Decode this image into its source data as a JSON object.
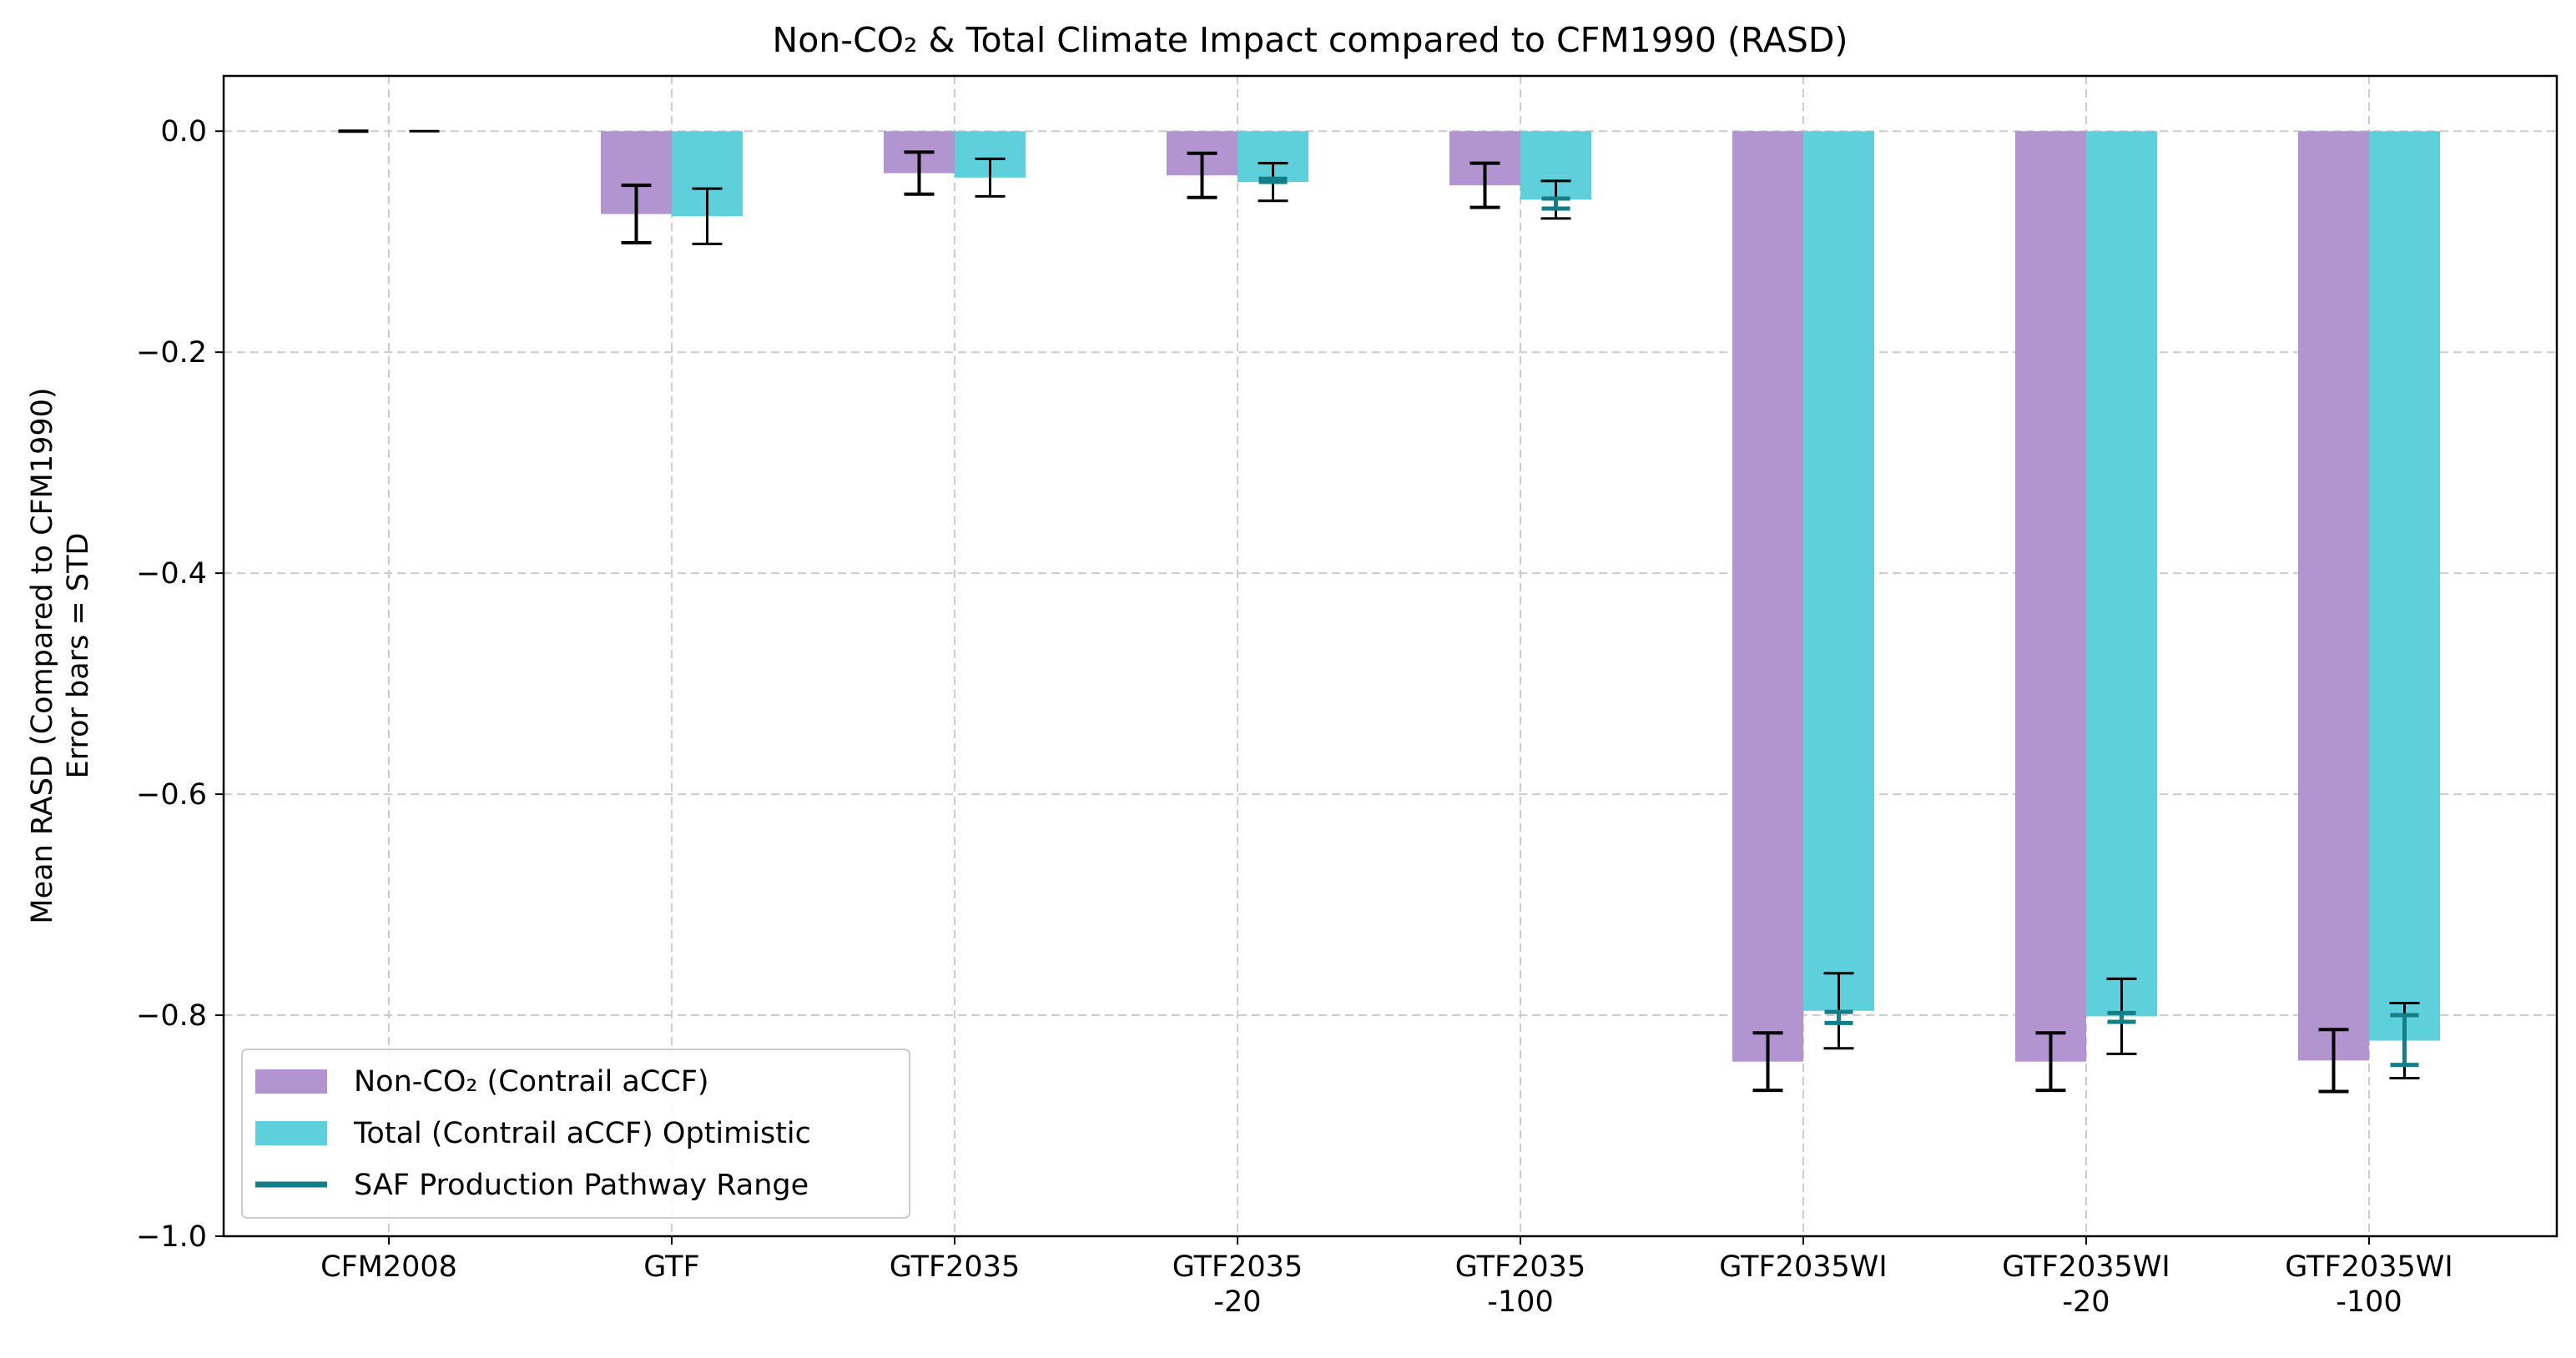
{
  "chart_data": {
    "type": "bar",
    "title": "Non-CO₂ & Total Climate Impact compared to CFM1990 (RASD)",
    "xlabel": "",
    "ylabel_lines": [
      "Mean RASD (Compared to CFM1990)",
      "Error bars = STD"
    ],
    "ylim": [
      -1.0,
      0.05
    ],
    "yticks": [
      0.0,
      -0.2,
      -0.4,
      -0.6,
      -0.8,
      -1.0
    ],
    "ytick_labels": [
      "0.0",
      "−0.2",
      "−0.4",
      "−0.6",
      "−0.8",
      "−1.0"
    ],
    "grid": true,
    "legend_position": "bottom-left",
    "categories": [
      [
        "CFM2008"
      ],
      [
        "GTF"
      ],
      [
        "GTF2035"
      ],
      [
        "GTF2035",
        "-20"
      ],
      [
        "GTF2035",
        "-100"
      ],
      [
        "GTF2035WI"
      ],
      [
        "GTF2035WI",
        "-20"
      ],
      [
        "GTF2035WI",
        "-100"
      ]
    ],
    "series": [
      {
        "name": "Non-CO₂ (Contrail aCCF)",
        "color": "#b294d1",
        "values": [
          0.0,
          -0.075,
          -0.038,
          -0.04,
          -0.049,
          -0.842,
          -0.842,
          -0.841
        ],
        "std": [
          0.0,
          0.026,
          0.019,
          0.02,
          0.02,
          0.026,
          0.026,
          0.028
        ]
      },
      {
        "name": "Total (Contrail aCCF) Optimistic",
        "color": "#5dd0dc",
        "values": [
          0.0,
          -0.077,
          -0.042,
          -0.046,
          -0.062,
          -0.796,
          -0.801,
          -0.823
        ],
        "std": [
          0.0,
          0.025,
          0.017,
          0.017,
          0.017,
          0.034,
          0.034,
          0.034
        ]
      }
    ],
    "saf_range": {
      "name": "SAF Production Pathway Range",
      "color": "#137e87",
      "ranges": [
        null,
        null,
        null,
        [
          -0.043,
          -0.046
        ],
        [
          -0.061,
          -0.07
        ],
        [
          -0.797,
          -0.807
        ],
        [
          -0.798,
          -0.806
        ],
        [
          -0.8,
          -0.845
        ]
      ]
    }
  }
}
